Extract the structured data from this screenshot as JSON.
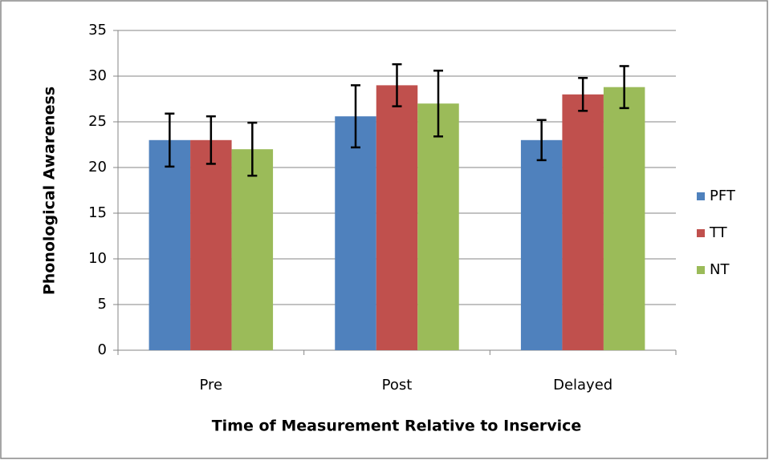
{
  "chart_data": {
    "type": "bar",
    "x_label": "Time of Measurement Relative to Inservice",
    "y_label": "Phonological Awareness",
    "categories": [
      "Pre",
      "Post",
      "Delayed"
    ],
    "series": [
      {
        "name": "PFT",
        "color": "#4f81bd",
        "values": [
          23,
          25.6,
          23
        ],
        "errors": [
          2.9,
          3.4,
          2.2
        ]
      },
      {
        "name": "TT",
        "color": "#c0504d",
        "values": [
          23,
          29,
          28
        ],
        "errors": [
          2.6,
          2.3,
          1.8
        ]
      },
      {
        "name": "NT",
        "color": "#9bbb59",
        "values": [
          22,
          27,
          28.8
        ],
        "errors": [
          2.9,
          3.6,
          2.3
        ]
      }
    ],
    "ylim": [
      0,
      35
    ],
    "yticks": [
      0,
      5,
      10,
      15,
      20,
      25,
      30,
      35
    ],
    "grid": true,
    "legend": "right"
  }
}
